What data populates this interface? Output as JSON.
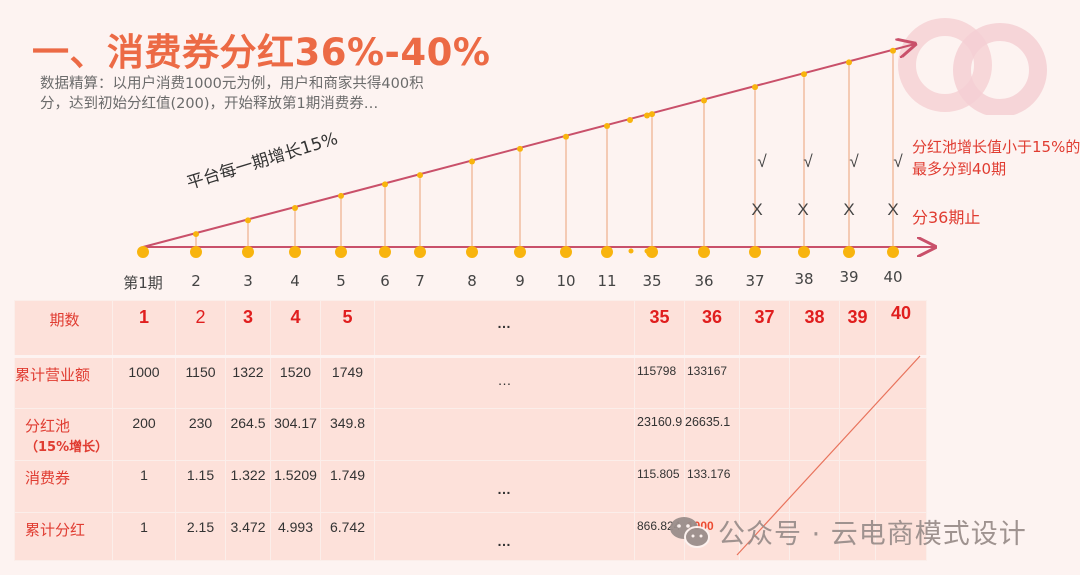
{
  "header": {
    "title": "一、消费券分红36%-40%",
    "description": "数据精算：以用户消费1000元为例，用户和商家共得400积分，达到初始分红值(200)，开始释放第1期消费券…"
  },
  "diagram": {
    "slope_label": "平台每一期增长15%",
    "note_40": "分红池增长值小于15%的最多分到40期",
    "note_36": "分36期止",
    "check_mark": "√",
    "cross_mark": "X",
    "ticks": [
      "第1期",
      "2",
      "3",
      "4",
      "5",
      "6",
      "7",
      "8",
      "9",
      "10",
      "11",
      "35",
      "36",
      "37",
      "38",
      "39",
      "40"
    ],
    "colors": {
      "accent": "#ec6a45",
      "line": "#c9506a",
      "dot": "#f8b40e",
      "stem": "#f0b494",
      "note": "#e03c31"
    }
  },
  "table": {
    "header_label": "期数",
    "periods_early": [
      "1",
      "2",
      "3",
      "4",
      "5"
    ],
    "ellipsis": "…",
    "periods_late": [
      "35",
      "36",
      "37",
      "38",
      "39",
      "40"
    ],
    "rows": [
      {
        "label": "累计营业额",
        "early": [
          "1000",
          "1150",
          "1322",
          "1520",
          "1749"
        ],
        "mid": "…",
        "late": [
          "115798",
          "133167",
          "",
          "",
          "",
          ""
        ]
      },
      {
        "label": "分红池",
        "sublabel": "（15%增长）",
        "early": [
          "200",
          "230",
          "264.5",
          "304.17",
          "349.8"
        ],
        "mid": "",
        "late": [
          "23160.9",
          "26635.1",
          "",
          "",
          "",
          ""
        ]
      },
      {
        "label": "消费券",
        "early": [
          "1",
          "1.15",
          "1.322",
          "1.5209",
          "1.749"
        ],
        "mid": "…",
        "late": [
          "115.805",
          "133.176",
          "",
          "",
          "",
          ""
        ]
      },
      {
        "label": "累计分红",
        "early": [
          "1",
          "2.15",
          "3.472",
          "4.993",
          "6.742"
        ],
        "mid": "…",
        "late": [
          "866.824",
          "1000",
          "",
          "",
          "",
          ""
        ]
      }
    ]
  },
  "watermark": {
    "text": "公众号 · 云电商模式设计",
    "icon": "wechat-icon"
  },
  "chart_data": {
    "type": "table",
    "title": "一、消费券分红36%-40%",
    "columns": [
      "1",
      "2",
      "3",
      "4",
      "5",
      "…",
      "35",
      "36",
      "37",
      "38",
      "39",
      "40"
    ],
    "series": [
      {
        "name": "累计营业额",
        "values": [
          1000,
          1150,
          1322,
          1520,
          1749,
          null,
          115798,
          133167,
          null,
          null,
          null,
          null
        ]
      },
      {
        "name": "分红池（15%增长）",
        "values": [
          200,
          230,
          264.5,
          304.17,
          349.8,
          null,
          23160.9,
          26635.1,
          null,
          null,
          null,
          null
        ]
      },
      {
        "name": "消费券",
        "values": [
          1,
          1.15,
          1.322,
          1.5209,
          1.749,
          null,
          115.805,
          133.176,
          null,
          null,
          null,
          null
        ]
      },
      {
        "name": "累计分红",
        "values": [
          1,
          2.15,
          3.472,
          4.993,
          6.742,
          null,
          866.824,
          1000,
          null,
          null,
          null,
          null
        ]
      }
    ],
    "annotations": [
      "平台每一期增长15%",
      "分红池增长值小于15%的最多分到40期",
      "分36期止"
    ]
  }
}
